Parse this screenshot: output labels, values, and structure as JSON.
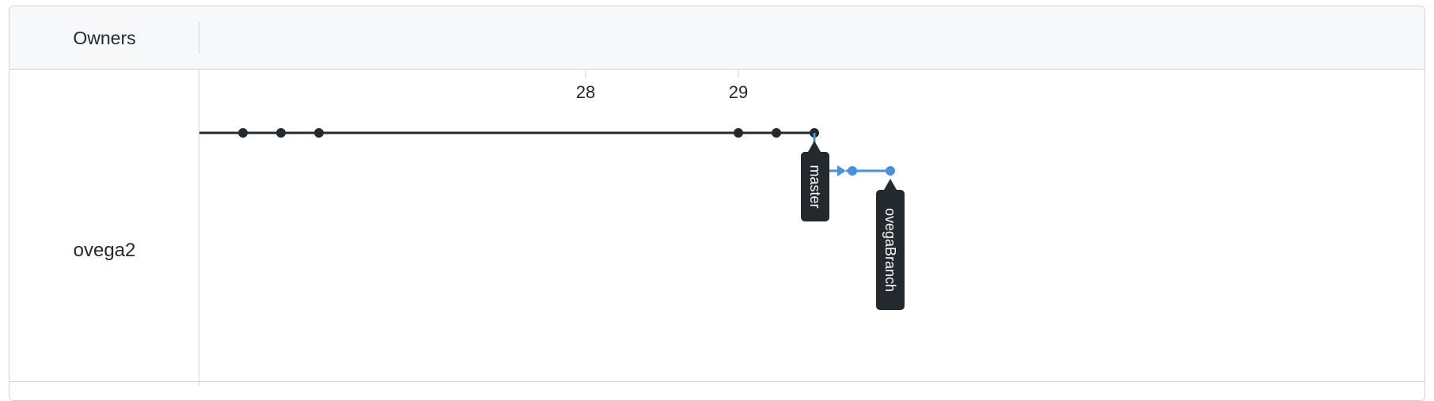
{
  "header": {
    "owners_label": "Owners"
  },
  "owners": [
    {
      "name": "ovega2"
    }
  ],
  "timeline": {
    "dates": [
      "28",
      "29"
    ]
  },
  "branches": [
    {
      "name": "master",
      "color": "#24292e"
    },
    {
      "name": "ovegaBranch",
      "color": "#4a90d9"
    }
  ],
  "colors": {
    "header_bg": "#f6f8fa",
    "border": "#d1d5da",
    "master_line": "#24292e",
    "branch_line": "#4a90d9",
    "label_bg": "#24292e"
  }
}
